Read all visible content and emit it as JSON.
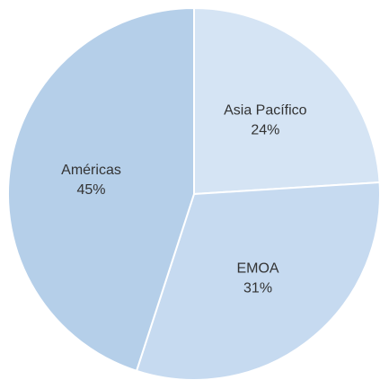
{
  "chart_data": {
    "type": "pie",
    "title": "",
    "start_angle_deg": 0,
    "direction": "clockwise",
    "slices": [
      {
        "label": "Asia Pacífico",
        "value": 24,
        "value_label": "24%",
        "color": "#d5e4f4"
      },
      {
        "label": "EMOA",
        "value": 31,
        "value_label": "31%",
        "color": "#c6daf0"
      },
      {
        "label": "Américas",
        "value": 45,
        "value_label": "45%",
        "color": "#b5cfe9"
      }
    ],
    "legend": "none"
  }
}
